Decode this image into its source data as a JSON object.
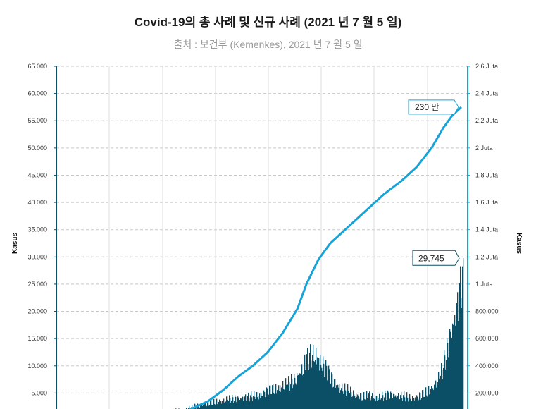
{
  "chart_data": {
    "type": "bar+line",
    "title": "Covid-19의 총 사례 및 신규 사례 (2021 년 7 월 5 일)",
    "subtitle": "출처 : 보건부 (Kemenkes), 2021 년 7 월 5 일",
    "left_axis": {
      "label": "Kasus",
      "ticks": [
        "65.000",
        "60.000",
        "55.000",
        "50.000",
        "45.000",
        "40.000",
        "35.000",
        "30.000",
        "25.000",
        "20.000",
        "15.000",
        "10.000",
        "5.000"
      ],
      "tick_values": [
        65000,
        60000,
        55000,
        50000,
        45000,
        40000,
        35000,
        30000,
        25000,
        20000,
        15000,
        10000,
        5000
      ],
      "ylim": [
        0,
        65000
      ]
    },
    "right_axis": {
      "label": "Kasus",
      "ticks": [
        "2,6 Juta",
        "2,4 Juta",
        "2,2 Juta",
        "2 Juta",
        "1,8 Juta",
        "1,6 Juta",
        "1,4 Juta",
        "1,2 Juta",
        "1 Juta",
        "800.000",
        "600.000",
        "400.000",
        "200.000"
      ],
      "tick_values": [
        2600000,
        2400000,
        2200000,
        2000000,
        1800000,
        1600000,
        1400000,
        1200000,
        1000000,
        800000,
        600000,
        400000,
        200000
      ],
      "ylim": [
        0,
        2600000
      ]
    },
    "grid": true,
    "series": [
      {
        "type": "bar",
        "axis": "left",
        "color": "#0b4f66",
        "values_by_week": [
          1500,
          1800,
          2000,
          2200,
          2300,
          2500,
          2800,
          3100,
          3500,
          3600,
          3800,
          4000,
          4200,
          4300,
          4500,
          4700,
          4700,
          4900,
          5200,
          5500,
          6000,
          6500,
          7000,
          7200,
          7500,
          8500,
          10500,
          12000,
          13000,
          13500,
          12000,
          10000,
          8500,
          7500,
          6500,
          6000,
          5500,
          5200,
          5000,
          5000,
          4800,
          4800,
          5000,
          5200,
          5300,
          5000,
          4800,
          4500,
          4800,
          5200,
          5800,
          6500,
          8000,
          10000,
          14500,
          20000,
          24000,
          29745
        ]
      },
      {
        "type": "line",
        "axis": "right",
        "color": "#16a3d8",
        "points": [
          [
            0,
            0
          ],
          [
            0.05,
            40000
          ],
          [
            0.1,
            90000
          ],
          [
            0.15,
            140000
          ],
          [
            0.2,
            220000
          ],
          [
            0.25,
            320000
          ],
          [
            0.3,
            400000
          ],
          [
            0.35,
            500000
          ],
          [
            0.4,
            640000
          ],
          [
            0.45,
            820000
          ],
          [
            0.48,
            1000000
          ],
          [
            0.52,
            1180000
          ],
          [
            0.56,
            1300000
          ],
          [
            0.62,
            1420000
          ],
          [
            0.68,
            1540000
          ],
          [
            0.74,
            1660000
          ],
          [
            0.8,
            1760000
          ],
          [
            0.85,
            1860000
          ],
          [
            0.9,
            2000000
          ],
          [
            0.94,
            2150000
          ],
          [
            0.97,
            2240000
          ],
          [
            1.0,
            2300000
          ]
        ]
      }
    ],
    "annotations": [
      {
        "text": "230 만",
        "series": "line",
        "value": 2300000
      },
      {
        "text": "29,745",
        "series": "bar",
        "value": 29745
      }
    ]
  }
}
